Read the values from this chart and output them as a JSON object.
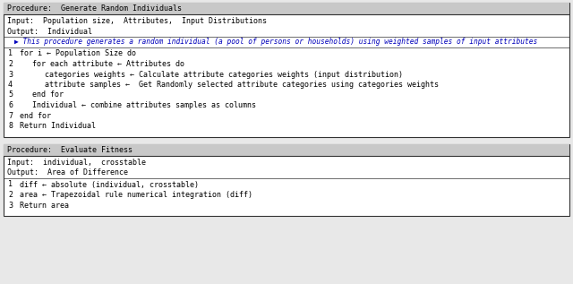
{
  "bg_color": "#e8e8e8",
  "box_bg": "#ffffff",
  "box_border": "#333333",
  "title_bg": "#c8c8c8",
  "blue_comment": "#0000bb",
  "text_color": "#000000",
  "proc1": {
    "title": "Procedure:  Generate Random Individuals",
    "input_line": "Input:  Population size,  Attributes,  Input Distributions",
    "output_line": "Output:  Individual",
    "comment": "▶ This procedure generates a random individual (a pool of persons or households) using weighted samples of input attributes",
    "lines": [
      {
        "num": "1",
        "indent": 0,
        "text": "for i ← Population Size do"
      },
      {
        "num": "2",
        "indent": 1,
        "text": "for each attribute ← Attributes do"
      },
      {
        "num": "3",
        "indent": 2,
        "text": "categories weights ← Calculate attribute categories weights (input distribution)"
      },
      {
        "num": "4",
        "indent": 2,
        "text": "attribute samples ←  Get Randomly selected attribute categories using categories weights"
      },
      {
        "num": "5",
        "indent": 1,
        "text": "end for"
      },
      {
        "num": "6",
        "indent": 1,
        "text": "Individual ← combine attributes samples as columns"
      },
      {
        "num": "7",
        "indent": 0,
        "text": "end for"
      },
      {
        "num": "8",
        "indent": 0,
        "text": "Return Individual"
      }
    ]
  },
  "proc2": {
    "title": "Procedure:  Evaluate Fitness",
    "input_line": "Input:  individual,  crosstable",
    "output_line": "Output:  Area of Difference",
    "lines": [
      {
        "num": "1",
        "indent": 0,
        "text": "diff ← absolute (individual, crosstable)"
      },
      {
        "num": "2",
        "indent": 0,
        "text": "area ← Trapezoidal rule numerical integration (diff)"
      },
      {
        "num": "3",
        "indent": 0,
        "text": "Return area"
      }
    ]
  },
  "fig_width": 6.4,
  "fig_height": 3.17,
  "dpi": 100
}
